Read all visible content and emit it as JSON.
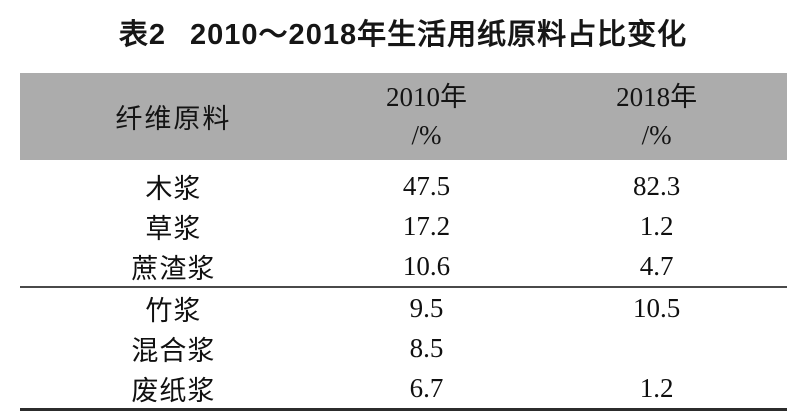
{
  "caption": {
    "label": "表2",
    "title": "2010～2018年生活用纸原料占比变化"
  },
  "table": {
    "header": {
      "material": "纤维原料",
      "y2010": "2010年",
      "y2018": "2018年",
      "unit": "/%"
    },
    "rows_top": [
      {
        "material": "木浆",
        "y2010": "47.5",
        "y2018": "82.3"
      },
      {
        "material": "草浆",
        "y2010": "17.2",
        "y2018": "1.2"
      },
      {
        "material": "蔗渣浆",
        "y2010": "10.6",
        "y2018": "4.7"
      }
    ],
    "rows_bottom": [
      {
        "material": "竹浆",
        "y2010": "9.5",
        "y2018": "10.5"
      },
      {
        "material": "混合浆",
        "y2010": "8.5",
        "y2018": ""
      },
      {
        "material": "废纸浆",
        "y2010": "6.7",
        "y2018": "1.2"
      }
    ]
  },
  "colors": {
    "header_bg": "#acacac",
    "text": "#101010",
    "rule_mid": "#4a4a4a",
    "rule_bottom": "#2c2c2c"
  }
}
